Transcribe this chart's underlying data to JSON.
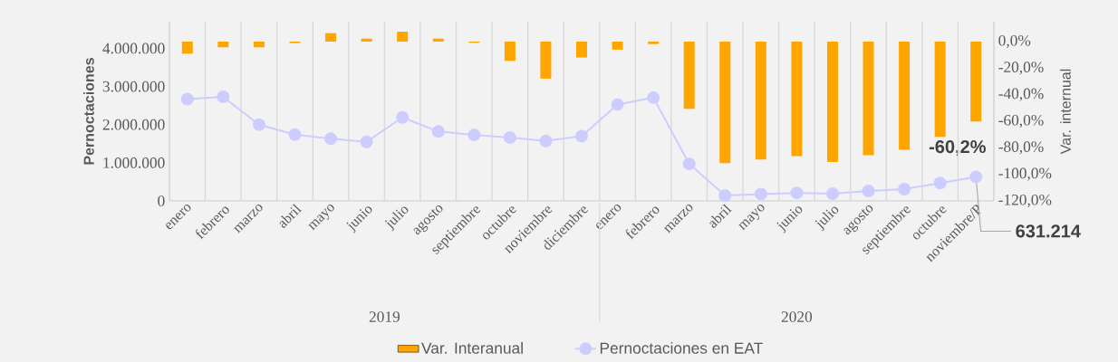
{
  "chart_data": {
    "type": "bar",
    "categories": [
      "enero",
      "febrero",
      "marzo",
      "abril",
      "mayo",
      "junio",
      "julio",
      "agosto",
      "septiembre",
      "octubre",
      "noviembre",
      "diciembre",
      "enero",
      "febrero",
      "marzo",
      "abril",
      "mayo",
      "junio",
      "julio",
      "agosto",
      "septiembre",
      "octubre",
      "noviembre/P"
    ],
    "series": [
      {
        "name": "Var. Interanual",
        "axis": "y2",
        "color": "#ffa500",
        "values": [
          -9.1,
          -4.3,
          -4.3,
          -1.1,
          6.4,
          2.3,
          7.5,
          2.3,
          -0.9,
          -14.5,
          -27.9,
          -12.0,
          -6.1,
          -1.8,
          -50.7,
          -91.5,
          -88.8,
          -86.3,
          -90.6,
          -85.6,
          -81.5,
          -71.8,
          -60.2
        ],
        "value_labels": [
          null,
          null,
          null,
          null,
          null,
          null,
          null,
          null,
          null,
          null,
          null,
          null,
          null,
          null,
          null,
          null,
          null,
          null,
          null,
          null,
          null,
          null,
          "-60,2%"
        ]
      },
      {
        "name": "Pernoctaciones en EAT",
        "type": "line",
        "color": "#ccccff",
        "marker": "circle",
        "values": [
          2670000,
          2730000,
          2000000,
          1740000,
          1630000,
          1550000,
          2190000,
          1820000,
          1730000,
          1660000,
          1570000,
          1700000,
          2530000,
          2710000,
          970000,
          140000,
          180000,
          210000,
          190000,
          260000,
          310000,
          470000,
          631214
        ],
        "value_labels": [
          null,
          null,
          null,
          null,
          null,
          null,
          null,
          null,
          null,
          null,
          null,
          null,
          null,
          null,
          null,
          null,
          null,
          null,
          null,
          null,
          null,
          null,
          "631.214"
        ]
      }
    ],
    "ylabel": "Pernoctaciones",
    "y2label": "Var. internual",
    "ylim": [
      0,
      4700000
    ],
    "yticks": [
      {
        "value": 0,
        "label": "0"
      },
      {
        "value": 1000000,
        "label": "1.000.000"
      },
      {
        "value": 2000000,
        "label": "2.000.000"
      },
      {
        "value": 3000000,
        "label": "3.000.000"
      },
      {
        "value": 4000000,
        "label": "4.000.000"
      }
    ],
    "y2lim": [
      -120,
      15
    ],
    "y2ticks": [
      {
        "value": 0,
        "label": "0,0%"
      },
      {
        "value": -20,
        "label": "-20,0%"
      },
      {
        "value": -40,
        "label": "-40,0%"
      },
      {
        "value": -60,
        "label": "-60,0%"
      },
      {
        "value": -80,
        "label": "-80,0%"
      },
      {
        "value": -100,
        "label": "-100,0%"
      },
      {
        "value": -120,
        "label": "-120,0%"
      }
    ],
    "annotations": [
      "2019",
      "2020"
    ],
    "grid": "x",
    "legend": "bottom"
  }
}
